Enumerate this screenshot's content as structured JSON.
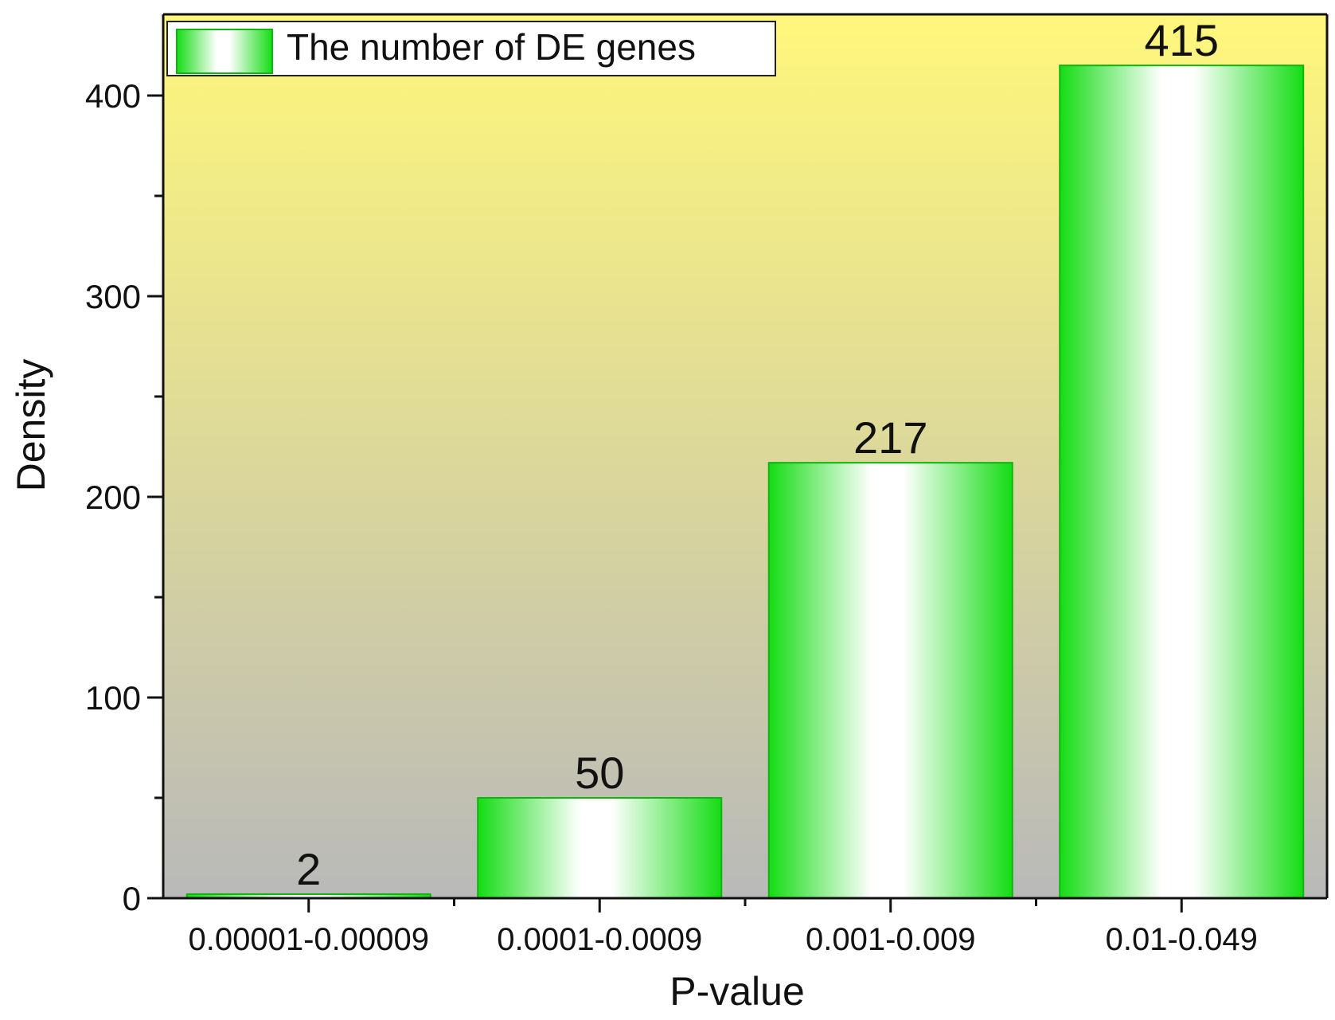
{
  "chart_data": {
    "type": "bar",
    "title": "",
    "xlabel": "P-value",
    "ylabel": "Density",
    "categories": [
      "0.00001-0.00009",
      "0.0001-0.0009",
      "0.001-0.009",
      "0.01-0.049"
    ],
    "series": [
      {
        "name": "The number of DE genes",
        "values": [
          2,
          50,
          217,
          415
        ],
        "data_labels": [
          "2",
          "50",
          "217",
          "415"
        ]
      }
    ],
    "ylim": [
      0,
      440
    ],
    "yticks": [
      0,
      100,
      200,
      300,
      400
    ],
    "yticks_labels": [
      "0",
      "100",
      "200",
      "300",
      "400"
    ],
    "grid": false,
    "legend_position": "top-left",
    "colors": {
      "bar_edge": "#0fb40f",
      "bar_fill": "#14dc14",
      "bar_highlight": "#ffffff",
      "background_top": "#fff77c",
      "background_bottom": "#b9b9b9"
    }
  }
}
